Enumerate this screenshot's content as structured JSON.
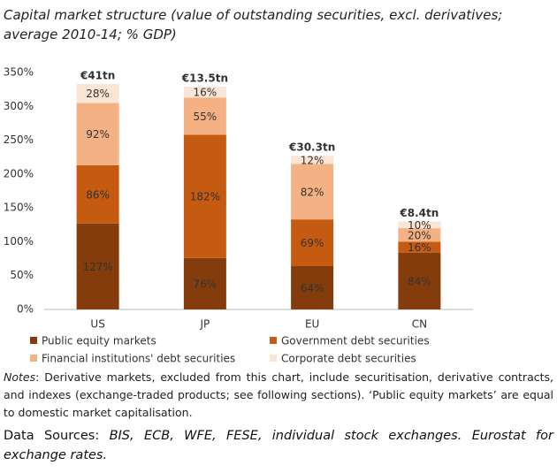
{
  "chart_data": {
    "type": "stacked_bar",
    "title": "Capital market structure (value of outstanding securities, excl. derivatives; average 2010-14; % GDP)",
    "categories": [
      "US",
      "JP",
      "EU",
      "CN"
    ],
    "annotations": [
      "€41tn",
      "€13.5tn",
      "€30.3tn",
      "€8.4tn"
    ],
    "series": [
      {
        "name": "Public equity markets",
        "color": "#843c0c",
        "values": [
          127,
          76,
          64,
          84
        ],
        "value_labels": [
          "127%",
          "76%",
          "64%",
          "84%"
        ]
      },
      {
        "name": "Government debt securities",
        "color": "#c55a11",
        "values": [
          86,
          182,
          69,
          16
        ],
        "value_labels": [
          "86%",
          "182%",
          "69%",
          "16%"
        ]
      },
      {
        "name": "Financial institutions' debt securities",
        "color": "#f4b183",
        "values": [
          92,
          55,
          82,
          20
        ],
        "value_labels": [
          "92%",
          "55%",
          "82%",
          "20%"
        ]
      },
      {
        "name": "Corporate debt securities",
        "color": "#fbe5d6",
        "values": [
          28,
          16,
          12,
          10
        ],
        "value_labels": [
          "28%",
          "16%",
          "12%",
          "10%"
        ]
      }
    ],
    "ylim": [
      0,
      350
    ],
    "yticks": [
      {
        "value": 0,
        "label": "0%"
      },
      {
        "value": 50,
        "label": "50%"
      },
      {
        "value": 100,
        "label": "100%"
      },
      {
        "value": 150,
        "label": "150%"
      },
      {
        "value": 200,
        "label": "200%"
      },
      {
        "value": 250,
        "label": "250%"
      },
      {
        "value": 300,
        "label": "300%"
      },
      {
        "value": 350,
        "label": "350%"
      }
    ],
    "grid": false,
    "notes_label": "Notes",
    "notes": ": Derivative markets, excluded from this chart, include securitisation, derivative contracts, and indexes (exchange-traded products; see following sections). ‘Public equity markets’ are equal to domestic market capitalisation.",
    "sources_label": "Data Sources:",
    "sources": " BIS, ECB, WFE, FESE, individual stock exchanges. Eurostat for exchange rates."
  }
}
